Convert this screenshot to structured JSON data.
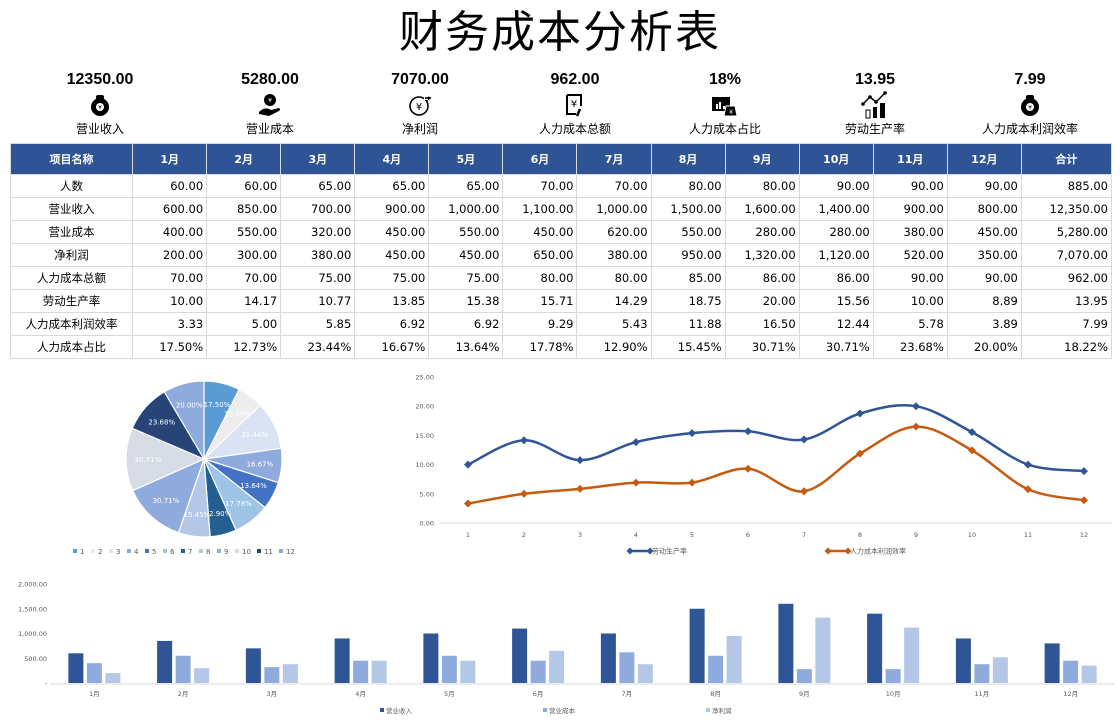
{
  "title": "财务成本分析表",
  "kpis": [
    {
      "value": "12350.00",
      "label": "营业收入",
      "icon": "money-bag-icon"
    },
    {
      "value": "5280.00",
      "label": "营业成本",
      "icon": "hand-coin-icon"
    },
    {
      "value": "7070.00",
      "label": "净利润",
      "icon": "yuan-cycle-icon"
    },
    {
      "value": "962.00",
      "label": "人力成本总额",
      "icon": "yuan-invoice-icon"
    },
    {
      "value": "18%",
      "label": "人力成本占比",
      "icon": "chart-bag-icon"
    },
    {
      "value": "13.95",
      "label": "劳动生产率",
      "icon": "trend-bars-icon"
    },
    {
      "value": "7.99",
      "label": "人力成本利润效率",
      "icon": "money-bag-icon"
    }
  ],
  "table": {
    "headers": [
      "项目名称",
      "1月",
      "2月",
      "3月",
      "4月",
      "5月",
      "6月",
      "7月",
      "8月",
      "9月",
      "10月",
      "11月",
      "12月",
      "合计"
    ],
    "rows": [
      [
        "人数",
        "60.00",
        "60.00",
        "65.00",
        "65.00",
        "65.00",
        "70.00",
        "70.00",
        "80.00",
        "80.00",
        "90.00",
        "90.00",
        "90.00",
        "885.00"
      ],
      [
        "营业收入",
        "600.00",
        "850.00",
        "700.00",
        "900.00",
        "1,000.00",
        "1,100.00",
        "1,000.00",
        "1,500.00",
        "1,600.00",
        "1,400.00",
        "900.00",
        "800.00",
        "12,350.00"
      ],
      [
        "营业成本",
        "400.00",
        "550.00",
        "320.00",
        "450.00",
        "550.00",
        "450.00",
        "620.00",
        "550.00",
        "280.00",
        "280.00",
        "380.00",
        "450.00",
        "5,280.00"
      ],
      [
        "净利润",
        "200.00",
        "300.00",
        "380.00",
        "450.00",
        "450.00",
        "650.00",
        "380.00",
        "950.00",
        "1,320.00",
        "1,120.00",
        "520.00",
        "350.00",
        "7,070.00"
      ],
      [
        "人力成本总额",
        "70.00",
        "70.00",
        "75.00",
        "75.00",
        "75.00",
        "80.00",
        "80.00",
        "85.00",
        "86.00",
        "86.00",
        "90.00",
        "90.00",
        "962.00"
      ],
      [
        "劳动生产率",
        "10.00",
        "14.17",
        "10.77",
        "13.85",
        "15.38",
        "15.71",
        "14.29",
        "18.75",
        "20.00",
        "15.56",
        "10.00",
        "8.89",
        "13.95"
      ],
      [
        "人力成本利润效率",
        "3.33",
        "5.00",
        "5.85",
        "6.92",
        "6.92",
        "9.29",
        "5.43",
        "11.88",
        "16.50",
        "12.44",
        "5.78",
        "3.89",
        "7.99"
      ],
      [
        "人力成本占比",
        "17.50%",
        "12.73%",
        "23.44%",
        "16.67%",
        "13.64%",
        "17.78%",
        "12.90%",
        "15.45%",
        "30.71%",
        "30.71%",
        "23.68%",
        "20.00%",
        "18.22%"
      ]
    ]
  },
  "chart_data": [
    {
      "type": "pie",
      "title": "",
      "categories": [
        "1",
        "2",
        "3",
        "4",
        "5",
        "6",
        "7",
        "8",
        "9",
        "10",
        "11",
        "12"
      ],
      "values": [
        17.5,
        12.73,
        23.44,
        16.67,
        13.64,
        17.78,
        12.9,
        15.45,
        30.71,
        30.71,
        23.68,
        20.0
      ],
      "labels": [
        "17.50%",
        "12.73%",
        "23.44%",
        "16.67%",
        "13.64%",
        "17.78%",
        "12.90%",
        "15.45%",
        "30.71%",
        "30.71%",
        "23.68%",
        "20.00%"
      ],
      "colors": [
        "#5b9bd5",
        "#ededed",
        "#dae3f3",
        "#8faadc",
        "#4472c4",
        "#9dc3e6",
        "#255e91",
        "#b4c7e7",
        "#8faadc",
        "#d6dce5",
        "#264478",
        "#8faadc"
      ],
      "legend": "bottom"
    },
    {
      "type": "line",
      "title": "",
      "x": [
        "1",
        "2",
        "3",
        "4",
        "5",
        "6",
        "7",
        "8",
        "9",
        "10",
        "11",
        "12"
      ],
      "series": [
        {
          "name": "劳动生产率",
          "color": "#2f5597",
          "values": [
            10.0,
            14.17,
            10.77,
            13.85,
            15.38,
            15.71,
            14.29,
            18.75,
            20.0,
            15.56,
            10.0,
            8.89
          ]
        },
        {
          "name": "人力成本利润效率",
          "color": "#c55a11",
          "values": [
            3.33,
            5.0,
            5.85,
            6.92,
            6.92,
            9.29,
            5.43,
            11.88,
            16.5,
            12.44,
            5.78,
            3.89
          ]
        }
      ],
      "ylim": [
        0,
        25
      ],
      "yticks": [
        "0.00",
        "5.00",
        "10.00",
        "15.00",
        "20.00",
        "25.00"
      ],
      "grid": false,
      "legend": "bottom"
    },
    {
      "type": "bar",
      "title": "",
      "categories": [
        "1月",
        "2月",
        "3月",
        "4月",
        "5月",
        "6月",
        "7月",
        "8月",
        "9月",
        "10月",
        "11月",
        "12月"
      ],
      "series": [
        {
          "name": "营业收入",
          "color": "#2f5597",
          "values": [
            600,
            850,
            700,
            900,
            1000,
            1100,
            1000,
            1500,
            1600,
            1400,
            900,
            800
          ]
        },
        {
          "name": "营业成本",
          "color": "#8faadc",
          "values": [
            400,
            550,
            320,
            450,
            550,
            450,
            620,
            550,
            280,
            280,
            380,
            450
          ]
        },
        {
          "name": "净利润",
          "color": "#b4c7e7",
          "values": [
            200,
            300,
            380,
            450,
            450,
            650,
            380,
            950,
            1320,
            1120,
            520,
            350
          ]
        }
      ],
      "ylim": [
        0,
        2000
      ],
      "yticks": [
        "-",
        "500.00",
        "1,000.00",
        "1,500.00",
        "2,000.00"
      ],
      "grid": false,
      "legend": "bottom"
    }
  ]
}
